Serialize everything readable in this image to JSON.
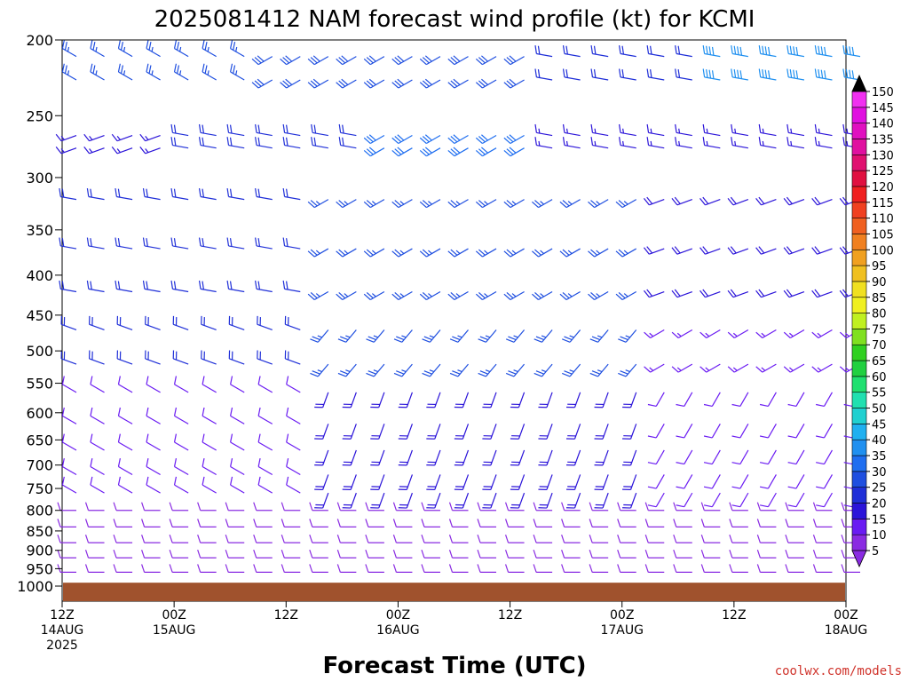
{
  "title": "2025081412 NAM forecast wind profile (kt) for KCMI",
  "xlabel": "Forecast Time (UTC)",
  "credit": "coolwx.com/models",
  "colors": {
    "ground": "#a0522d",
    "text": "#000000",
    "credit": "#d0342c"
  },
  "chart_data": {
    "type": "wind-barb",
    "units": "kt",
    "yaxis": {
      "ticks": [
        200,
        250,
        300,
        350,
        400,
        450,
        500,
        550,
        600,
        650,
        700,
        750,
        800,
        850,
        900,
        950,
        1000
      ],
      "range": [
        200,
        1000
      ],
      "scale": "log-pressure",
      "reversed": true
    },
    "xaxis": {
      "range_hours": [
        0,
        84
      ],
      "ticks": [
        {
          "hour": 0,
          "lines": [
            "12Z",
            "14AUG",
            "2025"
          ]
        },
        {
          "hour": 12,
          "lines": [
            "00Z",
            "15AUG"
          ]
        },
        {
          "hour": 24,
          "lines": [
            "12Z"
          ]
        },
        {
          "hour": 36,
          "lines": [
            "00Z",
            "16AUG"
          ]
        },
        {
          "hour": 48,
          "lines": [
            "12Z"
          ]
        },
        {
          "hour": 60,
          "lines": [
            "00Z",
            "17AUG"
          ]
        },
        {
          "hour": 72,
          "lines": [
            "12Z"
          ]
        },
        {
          "hour": 84,
          "lines": [
            "00Z",
            "18AUG"
          ]
        }
      ]
    },
    "levels": [
      210,
      225,
      265,
      275,
      320,
      370,
      420,
      470,
      520,
      565,
      620,
      670,
      720,
      760,
      800,
      840,
      880,
      920,
      960
    ],
    "times_hours": [
      0,
      3,
      6,
      9,
      12,
      15,
      18,
      21,
      24,
      27,
      30,
      33,
      36,
      39,
      42,
      45,
      48,
      51,
      54,
      57,
      60,
      63,
      66,
      69,
      72,
      75,
      78,
      81,
      84
    ],
    "surface_pressure": 990,
    "colorbar": {
      "labels": [
        5,
        10,
        15,
        20,
        25,
        30,
        35,
        40,
        45,
        50,
        55,
        60,
        65,
        70,
        75,
        80,
        85,
        90,
        95,
        100,
        105,
        110,
        115,
        120,
        125,
        130,
        135,
        140,
        145,
        150
      ],
      "colors": [
        "#8a2be2",
        "#6a1bf2",
        "#2b14d9",
        "#1f2fd8",
        "#1f4fe0",
        "#1f6ef0",
        "#2090f0",
        "#20b0f0",
        "#20d0d0",
        "#20e0b0",
        "#20e070",
        "#20d040",
        "#30d020",
        "#80e020",
        "#c0f020",
        "#f0f020",
        "#f0e020",
        "#f0c020",
        "#f0a020",
        "#f08020",
        "#f06020",
        "#f04020",
        "#f02020",
        "#e01040",
        "#e01070",
        "#e010a0",
        "#e010c0",
        "#e010e0",
        "#f030f0",
        "#ff40ff"
      ]
    },
    "winds": [
      {
        "time_range": [
          0,
          20
        ],
        "p_range": [
          200,
          240
        ],
        "dir": 300,
        "spd": 25
      },
      {
        "time_range": [
          20,
          48
        ],
        "p_range": [
          200,
          240
        ],
        "dir": 240,
        "spd": 28
      },
      {
        "time_range": [
          48,
          66
        ],
        "p_range": [
          200,
          240
        ],
        "dir": 280,
        "spd": 20
      },
      {
        "time_range": [
          66,
          84
        ],
        "p_range": [
          200,
          240
        ],
        "dir": 280,
        "spd": 38
      },
      {
        "time_range": [
          0,
          10
        ],
        "p_range": [
          240,
          300
        ],
        "dir": 250,
        "spd": 15
      },
      {
        "time_range": [
          10,
          30
        ],
        "p_range": [
          240,
          300
        ],
        "dir": 280,
        "spd": 22
      },
      {
        "time_range": [
          30,
          48
        ],
        "p_range": [
          240,
          300
        ],
        "dir": 240,
        "spd": 32
      },
      {
        "time_range": [
          48,
          84
        ],
        "p_range": [
          240,
          300
        ],
        "dir": 280,
        "spd": 15
      },
      {
        "time_range": [
          0,
          24
        ],
        "p_range": [
          300,
          420
        ],
        "dir": 280,
        "spd": 22
      },
      {
        "time_range": [
          24,
          60
        ],
        "p_range": [
          300,
          420
        ],
        "dir": 240,
        "spd": 26
      },
      {
        "time_range": [
          60,
          84
        ],
        "p_range": [
          300,
          420
        ],
        "dir": 250,
        "spd": 18
      },
      {
        "time_range": [
          0,
          24
        ],
        "p_range": [
          420,
          560
        ],
        "dir": 290,
        "spd": 20
      },
      {
        "time_range": [
          24,
          60
        ],
        "p_range": [
          420,
          560
        ],
        "dir": 220,
        "spd": 26
      },
      {
        "time_range": [
          60,
          84
        ],
        "p_range": [
          420,
          560
        ],
        "dir": 240,
        "spd": 14
      },
      {
        "time_range": [
          0,
          24
        ],
        "p_range": [
          560,
          760
        ],
        "dir": 300,
        "spd": 10
      },
      {
        "time_range": [
          24,
          60
        ],
        "p_range": [
          560,
          760
        ],
        "dir": 200,
        "spd": 18
      },
      {
        "time_range": [
          60,
          84
        ],
        "p_range": [
          560,
          760
        ],
        "dir": 210,
        "spd": 12
      },
      {
        "time_range": [
          0,
          84
        ],
        "p_range": [
          760,
          990
        ],
        "dir": 270,
        "spd": 9
      }
    ]
  }
}
